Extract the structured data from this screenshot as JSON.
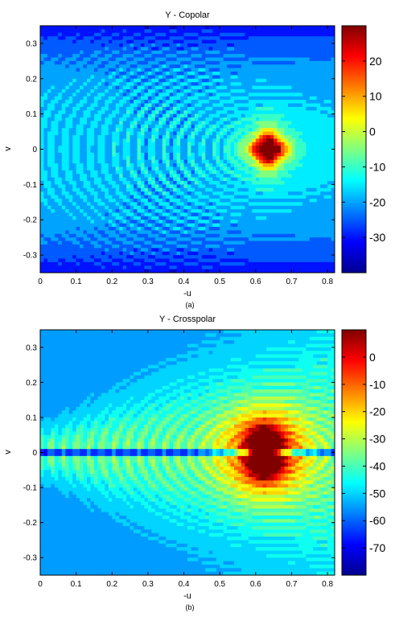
{
  "chart_data": [
    {
      "type": "heatmap",
      "title": "Y - Copolar",
      "xlabel": "-u",
      "ylabel": "v",
      "caption": "(a)",
      "xlim": [
        0,
        0.82
      ],
      "ylim": [
        -0.35,
        0.35
      ],
      "x_ticks": [
        0,
        0.1,
        0.2,
        0.3,
        0.4,
        0.5,
        0.6,
        0.7,
        0.8
      ],
      "x_tick_labels": [
        "0",
        "0.1",
        "0.2",
        "0.3",
        "0.4",
        "0.5",
        "0.6",
        "0.7",
        "0.8"
      ],
      "y_ticks": [
        0.3,
        0.2,
        0.1,
        0,
        -0.1,
        -0.2,
        -0.3
      ],
      "y_tick_labels": [
        "0.3",
        "0.2",
        "0.1",
        "0",
        "-0.1",
        "-0.2",
        "-0.3"
      ],
      "colorbar": {
        "range": [
          -40,
          30
        ],
        "ticks": [
          20,
          10,
          0,
          -10,
          -20,
          -30
        ],
        "tick_labels": [
          "20",
          "10",
          "0",
          "-10",
          "-20",
          "-30"
        ]
      },
      "peak": {
        "u": 0.635,
        "v": 0.0,
        "value": 30
      },
      "background_value": -17,
      "fringe_spacing_u": 0.035,
      "legend": "none",
      "grid": false
    },
    {
      "type": "heatmap",
      "title": "Y - Crosspolar",
      "xlabel": "-u",
      "ylabel": "v",
      "caption": "(b)",
      "xlim": [
        0,
        0.82
      ],
      "ylim": [
        -0.35,
        0.35
      ],
      "x_ticks": [
        0,
        0.1,
        0.2,
        0.3,
        0.4,
        0.5,
        0.6,
        0.7,
        0.8
      ],
      "x_tick_labels": [
        "0",
        "0.1",
        "0.2",
        "0.3",
        "0.4",
        "0.5",
        "0.6",
        "0.7",
        "0.8"
      ],
      "y_ticks": [
        0.3,
        0.2,
        0.1,
        0,
        -0.1,
        -0.2,
        -0.3
      ],
      "y_tick_labels": [
        "0.3",
        "0.2",
        "0.1",
        "0",
        "-0.1",
        "-0.2",
        "-0.3"
      ],
      "colorbar": {
        "range": [
          -80,
          10
        ],
        "ticks": [
          0,
          -10,
          -20,
          -30,
          -40,
          -50,
          -60,
          -70
        ],
        "tick_labels": [
          "0",
          "-10",
          "-20",
          "-30",
          "-40",
          "-50",
          "-60",
          "-70"
        ]
      },
      "peaks": [
        {
          "u": 0.625,
          "v": 0.03,
          "value": 5
        },
        {
          "u": 0.625,
          "v": -0.03,
          "value": 5
        }
      ],
      "null_line_v": 0,
      "background_value": -55,
      "fringe_spacing_u": 0.035,
      "legend": "none",
      "grid": false
    }
  ]
}
